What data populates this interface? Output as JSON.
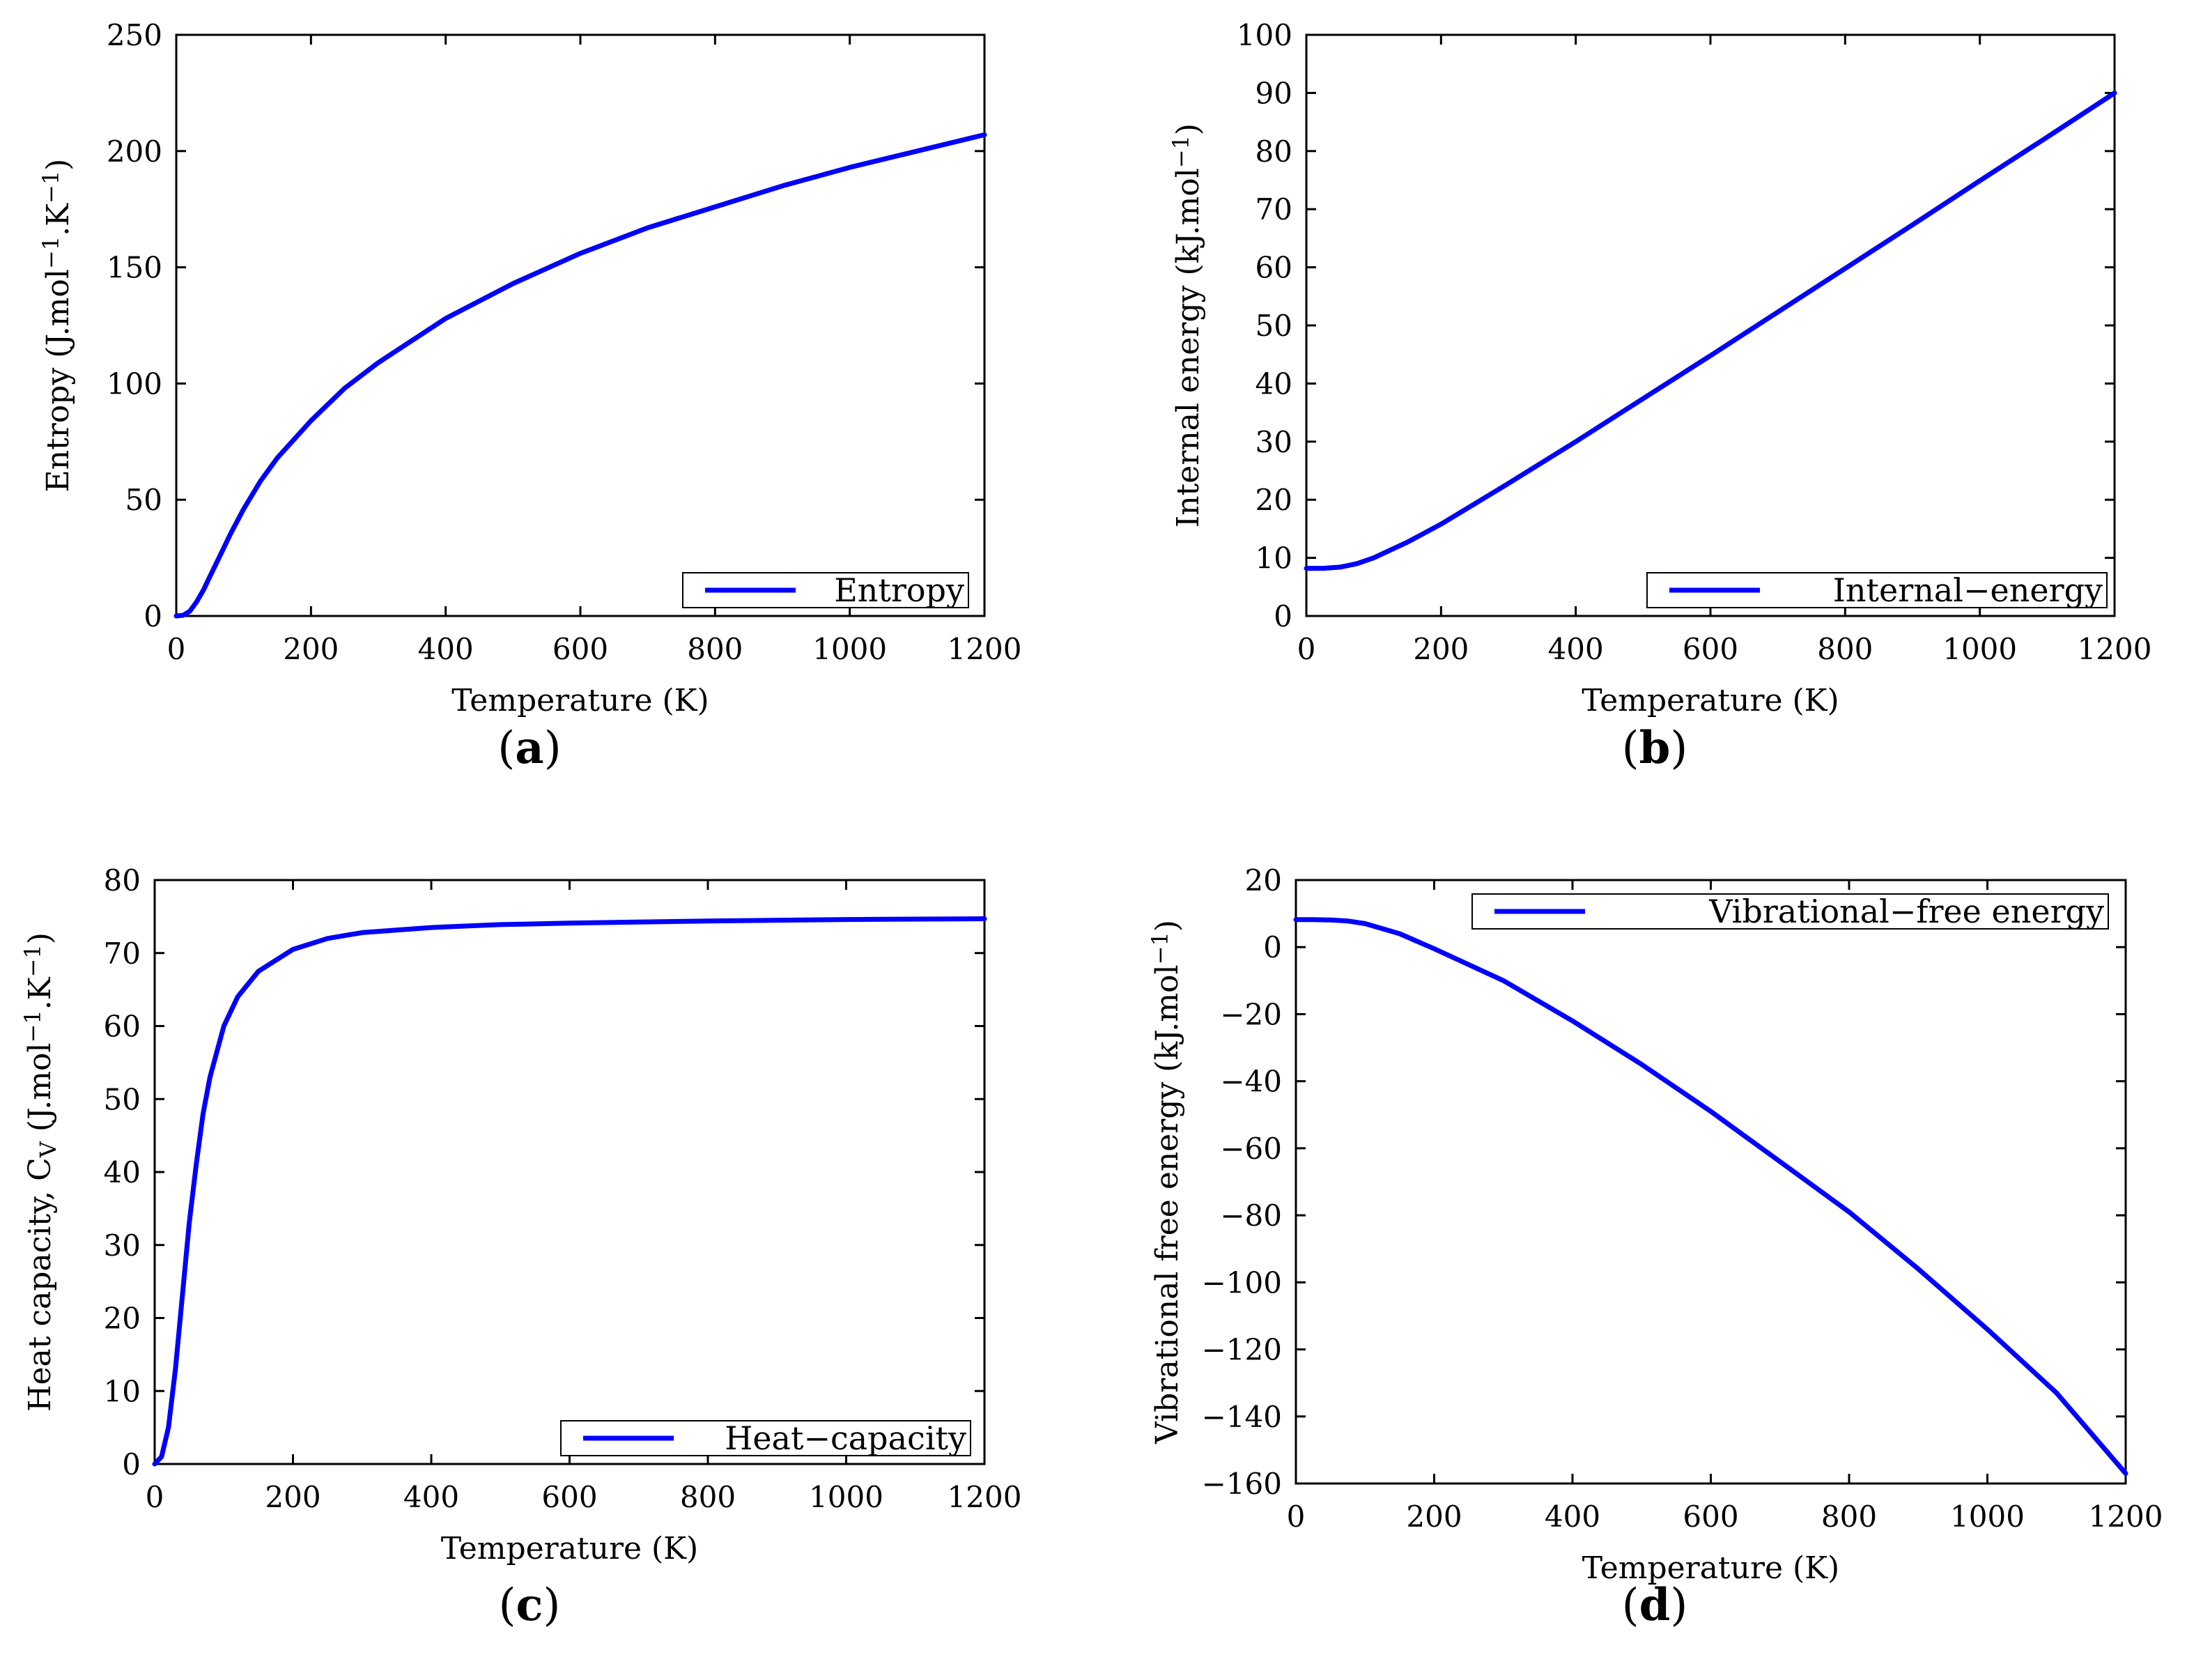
{
  "colors": {
    "series": "#0000ff",
    "axes": "#000000",
    "background": "#ffffff"
  },
  "chart_data": [
    {
      "id": "a",
      "type": "line",
      "panel_label": "(a)",
      "title": "",
      "xlabel": "Temperature (K)",
      "ylabel_text": "Entropy (J.mol",
      "ylabel_mid": ".K",
      "ylabel_sup": "−1",
      "ylabel_end": ")",
      "xlim": [
        0,
        1200
      ],
      "ylim": [
        0,
        250
      ],
      "xticks": [
        "0",
        "200",
        "400",
        "600",
        "800",
        "1000",
        "1200"
      ],
      "yticks": [
        "0",
        "50",
        "100",
        "150",
        "200",
        "250"
      ],
      "legend": {
        "label": "Entropy",
        "position": "bottom-right"
      },
      "series": [
        {
          "name": "Entropy",
          "x": [
            0,
            10,
            20,
            30,
            40,
            50,
            60,
            70,
            80,
            100,
            125,
            150,
            200,
            250,
            300,
            400,
            500,
            600,
            700,
            800,
            900,
            1000,
            1100,
            1200
          ],
          "y": [
            0,
            0.3,
            2,
            6,
            11,
            17,
            23,
            29,
            35,
            46,
            58,
            68,
            84,
            98,
            109,
            128,
            143,
            156,
            167,
            176,
            185,
            193,
            200,
            207
          ]
        }
      ]
    },
    {
      "id": "b",
      "type": "line",
      "panel_label": "(b)",
      "title": "",
      "xlabel": "Temperature (K)",
      "ylabel_text": "Internal energy (kJ.mol",
      "ylabel_mid": "",
      "ylabel_sup": "−1",
      "ylabel_end": ")",
      "xlim": [
        0,
        1200
      ],
      "ylim": [
        0,
        100
      ],
      "xticks": [
        "0",
        "200",
        "400",
        "600",
        "800",
        "1000",
        "1200"
      ],
      "yticks": [
        "0",
        "10",
        "20",
        "30",
        "40",
        "50",
        "60",
        "70",
        "80",
        "90",
        "100"
      ],
      "legend": {
        "label": "Internal−energy",
        "position": "bottom-right"
      },
      "series": [
        {
          "name": "Internal−energy",
          "x": [
            0,
            25,
            50,
            75,
            100,
            150,
            200,
            300,
            400,
            500,
            600,
            700,
            800,
            900,
            1000,
            1100,
            1200
          ],
          "y": [
            8.2,
            8.2,
            8.4,
            9.0,
            10.0,
            12.7,
            15.8,
            22.8,
            30.0,
            37.4,
            44.8,
            52.3,
            59.8,
            67.3,
            74.9,
            82.4,
            90.0
          ]
        }
      ]
    },
    {
      "id": "c",
      "type": "line",
      "panel_label": "(c)",
      "title": "",
      "xlabel": "Temperature (K)",
      "ylabel_text": "Heat capacity, C",
      "ylabel_sub": "V",
      "ylabel_mid": " (J.mol",
      "ylabel_sup": "−1",
      "ylabel_mid2": ".K",
      "ylabel_end": ")",
      "xlim": [
        0,
        1200
      ],
      "ylim": [
        0,
        80
      ],
      "xticks": [
        "0",
        "200",
        "400",
        "600",
        "800",
        "1000",
        "1200"
      ],
      "yticks": [
        "0",
        "10",
        "20",
        "30",
        "40",
        "50",
        "60",
        "70",
        "80"
      ],
      "legend": {
        "label": "Heat−capacity",
        "position": "bottom-right"
      },
      "series": [
        {
          "name": "Heat−capacity",
          "x": [
            0,
            10,
            20,
            30,
            40,
            50,
            60,
            70,
            80,
            100,
            120,
            150,
            200,
            250,
            300,
            400,
            500,
            600,
            800,
            1000,
            1200
          ],
          "y": [
            0,
            1,
            5,
            13,
            23,
            33,
            41,
            48,
            53,
            60,
            64,
            67.5,
            70.5,
            72,
            72.8,
            73.5,
            73.9,
            74.1,
            74.4,
            74.6,
            74.7
          ]
        }
      ]
    },
    {
      "id": "d",
      "type": "line",
      "panel_label": "(d)",
      "title": "",
      "xlabel": "Temperature (K)",
      "ylabel_text": "Vibrational free energy (kJ.mol",
      "ylabel_mid": "",
      "ylabel_sup": "−1",
      "ylabel_end": ")",
      "xlim": [
        0,
        1200
      ],
      "ylim": [
        -160,
        20
      ],
      "xticks": [
        "0",
        "200",
        "400",
        "600",
        "800",
        "1000",
        "1200"
      ],
      "yticks": [
        "−160",
        "−140",
        "−120",
        "−100",
        "−80",
        "−60",
        "−40",
        "−20",
        "0",
        "20"
      ],
      "legend": {
        "label": "Vibrational−free energy",
        "position": "top-right"
      },
      "series": [
        {
          "name": "Vibrational−free energy",
          "x": [
            0,
            25,
            50,
            75,
            100,
            150,
            200,
            300,
            400,
            500,
            600,
            700,
            800,
            900,
            1000,
            1100,
            1200
          ],
          "y": [
            8.2,
            8.2,
            8.1,
            7.8,
            7.0,
            4.0,
            -0.5,
            -10,
            -22,
            -35,
            -49,
            -64,
            -79,
            -96,
            -114,
            -133,
            -157
          ]
        }
      ]
    }
  ]
}
